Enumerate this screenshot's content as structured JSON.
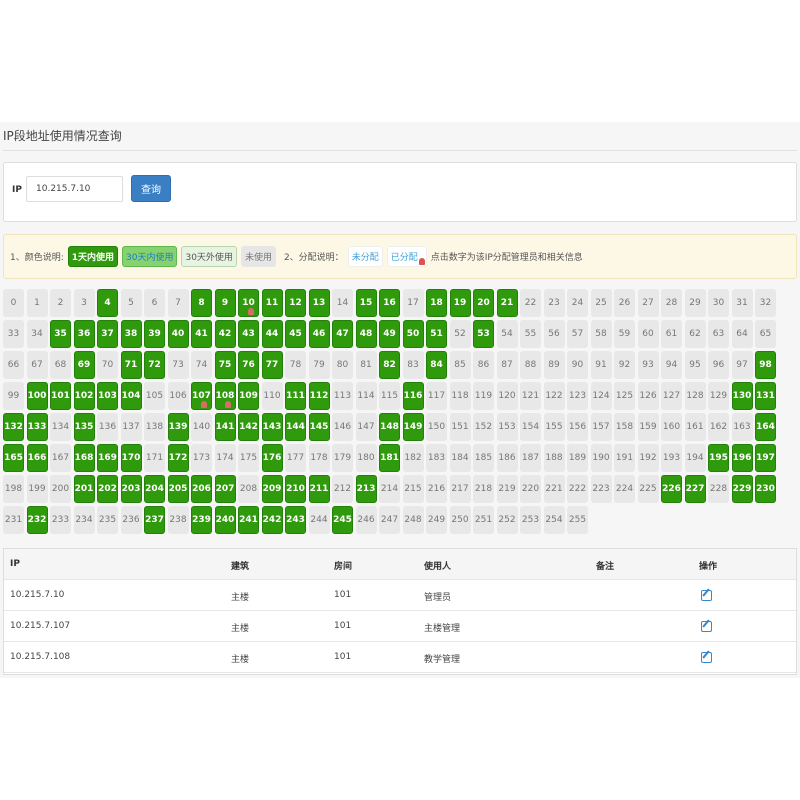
{
  "title": "IP段地址使用情况查询",
  "search": {
    "label": "IP",
    "value": "10.215.7.10",
    "button": "查询"
  },
  "legend": {
    "color_label": "1、颜色说明:",
    "tags": [
      "1天内使用",
      "30天内使用",
      "30天外使用",
      "未使用"
    ],
    "assign_label": "2、分配说明：",
    "unassigned": "未分配",
    "assigned": "已分配",
    "hint": "点击数字为该IP分配管理员和相关信息"
  },
  "grid": {
    "count": 256,
    "used_1day": [
      4,
      8,
      9,
      10,
      11,
      12,
      13,
      15,
      16,
      18,
      19,
      20,
      21,
      35,
      36,
      37,
      38,
      39,
      40,
      41,
      42,
      43,
      44,
      45,
      46,
      47,
      48,
      49,
      50,
      51,
      53,
      69,
      71,
      72,
      75,
      76,
      77,
      82,
      84,
      98,
      100,
      101,
      102,
      103,
      104,
      107,
      108,
      109,
      111,
      112,
      116,
      130,
      131,
      132,
      133,
      135,
      139,
      141,
      142,
      143,
      144,
      145,
      148,
      149,
      164,
      165,
      166,
      168,
      169,
      170,
      172,
      176,
      181,
      195,
      196,
      197,
      201,
      202,
      203,
      204,
      205,
      206,
      207,
      209,
      210,
      211,
      213,
      226,
      227,
      229,
      230,
      232,
      237,
      239,
      240,
      241,
      242,
      243,
      245
    ],
    "assigned": [
      10,
      107,
      108
    ]
  },
  "table": {
    "headers": [
      "IP",
      "建筑",
      "房间",
      "使用人",
      "备注",
      "操作"
    ],
    "rows": [
      {
        "ip": "10.215.7.10",
        "building": "主楼",
        "room": "101",
        "user": "管理员",
        "note": ""
      },
      {
        "ip": "10.215.7.107",
        "building": "主楼",
        "room": "101",
        "user": "主楼管理",
        "note": ""
      },
      {
        "ip": "10.215.7.108",
        "building": "主楼",
        "room": "101",
        "user": "教学管理",
        "note": ""
      }
    ]
  },
  "colors": {
    "used": "#2f9a0c",
    "unused": "#e8e8e8",
    "button": "#3a7fc4",
    "legend_bg": "#fdf8e6"
  }
}
